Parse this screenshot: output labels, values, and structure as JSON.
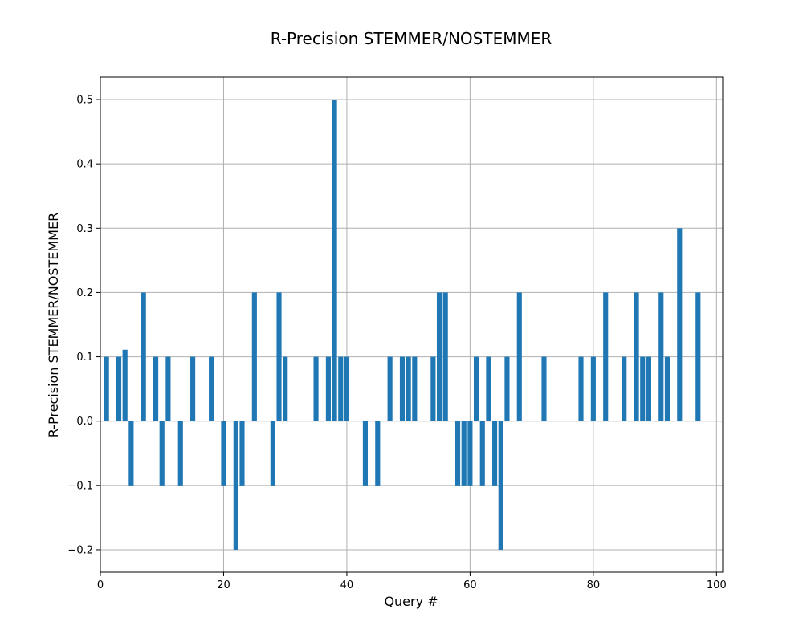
{
  "chart_data": {
    "type": "bar",
    "title": "R-Precision STEMMER/NOSTEMMER",
    "xlabel": "Query #",
    "ylabel": "R-Precision STEMMER/NOSTEMMER",
    "xlim": [
      0,
      101
    ],
    "ylim": [
      -0.235,
      0.535
    ],
    "xticks": [
      0,
      20,
      40,
      60,
      80,
      100
    ],
    "yticks": [
      -0.2,
      -0.1,
      0.0,
      0.1,
      0.2,
      0.3,
      0.4,
      0.5
    ],
    "ytick_labels": [
      "−0.2",
      "−0.1",
      "0.0",
      "0.1",
      "0.2",
      "0.3",
      "0.4",
      "0.5"
    ],
    "grid": true,
    "bar_color": "#1f77b4",
    "bar_width": 0.8,
    "x": [
      1,
      2,
      3,
      4,
      5,
      6,
      7,
      8,
      9,
      10,
      11,
      12,
      13,
      14,
      15,
      16,
      17,
      18,
      19,
      20,
      21,
      22,
      23,
      24,
      25,
      26,
      27,
      28,
      29,
      30,
      31,
      32,
      33,
      34,
      35,
      36,
      37,
      38,
      39,
      40,
      41,
      42,
      43,
      44,
      45,
      46,
      47,
      48,
      49,
      50,
      51,
      52,
      53,
      54,
      55,
      56,
      57,
      58,
      59,
      60,
      61,
      62,
      63,
      64,
      65,
      66,
      67,
      68,
      69,
      70,
      71,
      72,
      73,
      74,
      75,
      76,
      77,
      78,
      79,
      80,
      81,
      82,
      83,
      84,
      85,
      86,
      87,
      88,
      89,
      90,
      91,
      92,
      93,
      94,
      95,
      96,
      97
    ],
    "values": [
      0.1,
      0,
      0.1,
      0.111,
      -0.1,
      0,
      0.2,
      0,
      0.1,
      -0.1,
      0.1,
      0,
      -0.1,
      0,
      0.1,
      0,
      0,
      0.1,
      0,
      -0.1,
      0,
      -0.2,
      -0.1,
      0,
      0.2,
      0,
      0,
      -0.1,
      0.2,
      0.1,
      0,
      0,
      0,
      0,
      0.1,
      0,
      0.1,
      0.5,
      0.1,
      0.1,
      0,
      0,
      -0.1,
      0,
      -0.1,
      0,
      0.1,
      0,
      0.1,
      0.1,
      0.1,
      0,
      0,
      0.1,
      0.2,
      0.2,
      0,
      -0.1,
      -0.1,
      -0.1,
      0.1,
      -0.1,
      0.1,
      -0.1,
      -0.2,
      0.1,
      0,
      0.2,
      0,
      0,
      0,
      0.1,
      0,
      0,
      0,
      0,
      0,
      0.1,
      0,
      0.1,
      0,
      0.2,
      0,
      0,
      0.1,
      0,
      0.2,
      0.1,
      0.1,
      0,
      0.2,
      0.1,
      0,
      0.3,
      0,
      0,
      0.2
    ]
  }
}
